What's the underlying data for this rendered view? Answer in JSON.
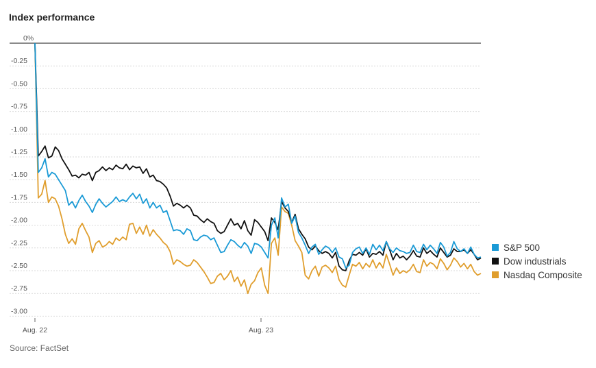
{
  "chart_data": {
    "type": "line",
    "title": "Index performance",
    "source": "Source: FactSet",
    "xlabel": "",
    "ylabel": "",
    "x_ticks": [
      "Aug. 22",
      "Aug. 23"
    ],
    "y_ticks": [
      "0%",
      "-0.25",
      "-0.50",
      "-0.75",
      "-1.00",
      "-1.25",
      "-1.50",
      "-1.75",
      "-2.00",
      "-2.25",
      "-2.50",
      "-2.75",
      "-3.00"
    ],
    "ylim": [
      -3.0,
      0
    ],
    "grid": true,
    "legend_position": "right",
    "series": [
      {
        "name": "S&P 500",
        "color": "#1a9ad6",
        "values": [
          0,
          -1.42,
          -1.37,
          -1.27,
          -1.47,
          -1.42,
          -1.44,
          -1.5,
          -1.56,
          -1.62,
          -1.78,
          -1.74,
          -1.81,
          -1.73,
          -1.67,
          -1.74,
          -1.79,
          -1.86,
          -1.77,
          -1.71,
          -1.76,
          -1.8,
          -1.77,
          -1.74,
          -1.69,
          -1.74,
          -1.72,
          -1.74,
          -1.69,
          -1.65,
          -1.71,
          -1.66,
          -1.76,
          -1.71,
          -1.81,
          -1.75,
          -1.81,
          -1.78,
          -1.86,
          -1.84,
          -1.95,
          -2.06,
          -2.05,
          -2.06,
          -2.1,
          -2.04,
          -2.06,
          -2.16,
          -2.17,
          -2.13,
          -2.11,
          -2.12,
          -2.16,
          -2.14,
          -2.22,
          -2.3,
          -2.29,
          -2.22,
          -2.16,
          -2.18,
          -2.22,
          -2.25,
          -2.19,
          -2.23,
          -2.31,
          -2.2,
          -2.21,
          -2.24,
          -2.3,
          -2.36,
          -2.0,
          -1.92,
          -2.14,
          -1.7,
          -1.8,
          -1.77,
          -1.98,
          -1.9,
          -2.08,
          -2.14,
          -2.22,
          -2.31,
          -2.24,
          -2.21,
          -2.32,
          -2.27,
          -2.23,
          -2.25,
          -2.3,
          -2.25,
          -2.35,
          -2.37,
          -2.47,
          -2.44,
          -2.3,
          -2.26,
          -2.24,
          -2.31,
          -2.25,
          -2.32,
          -2.21,
          -2.27,
          -2.22,
          -2.28,
          -2.18,
          -2.26,
          -2.3,
          -2.25,
          -2.28,
          -2.29,
          -2.31,
          -2.3,
          -2.22,
          -2.29,
          -2.3,
          -2.21,
          -2.27,
          -2.22,
          -2.26,
          -2.31,
          -2.19,
          -2.24,
          -2.34,
          -2.3,
          -2.18,
          -2.26,
          -2.29,
          -2.26,
          -2.31,
          -2.24,
          -2.32,
          -2.36,
          -2.35
        ]
      },
      {
        "name": "Dow industrials",
        "color": "#111111",
        "values": [
          0,
          -1.24,
          -1.19,
          -1.13,
          -1.26,
          -1.24,
          -1.14,
          -1.18,
          -1.27,
          -1.33,
          -1.39,
          -1.46,
          -1.45,
          -1.48,
          -1.44,
          -1.45,
          -1.42,
          -1.51,
          -1.42,
          -1.4,
          -1.36,
          -1.4,
          -1.37,
          -1.39,
          -1.34,
          -1.37,
          -1.38,
          -1.33,
          -1.39,
          -1.35,
          -1.37,
          -1.36,
          -1.43,
          -1.38,
          -1.47,
          -1.45,
          -1.51,
          -1.52,
          -1.55,
          -1.59,
          -1.68,
          -1.79,
          -1.76,
          -1.78,
          -1.81,
          -1.78,
          -1.81,
          -1.89,
          -1.9,
          -1.94,
          -1.97,
          -1.93,
          -1.96,
          -1.98,
          -2.06,
          -2.09,
          -2.07,
          -2.0,
          -1.93,
          -2.0,
          -1.98,
          -2.04,
          -1.95,
          -2.06,
          -2.11,
          -1.94,
          -1.97,
          -2.02,
          -2.07,
          -2.17,
          -1.92,
          -1.97,
          -2.05,
          -1.74,
          -1.81,
          -1.85,
          -1.97,
          -1.88,
          -2.04,
          -2.1,
          -2.15,
          -2.24,
          -2.27,
          -2.23,
          -2.28,
          -2.31,
          -2.29,
          -2.31,
          -2.36,
          -2.3,
          -2.45,
          -2.49,
          -2.5,
          -2.39,
          -2.32,
          -2.33,
          -2.3,
          -2.33,
          -2.26,
          -2.35,
          -2.31,
          -2.32,
          -2.29,
          -2.33,
          -2.18,
          -2.27,
          -2.38,
          -2.31,
          -2.36,
          -2.34,
          -2.38,
          -2.34,
          -2.28,
          -2.34,
          -2.35,
          -2.25,
          -2.31,
          -2.28,
          -2.32,
          -2.35,
          -2.25,
          -2.3,
          -2.35,
          -2.33,
          -2.26,
          -2.29,
          -2.29,
          -2.27,
          -2.31,
          -2.27,
          -2.32,
          -2.38,
          -2.36
        ]
      },
      {
        "name": "Nasdaq Composite",
        "color": "#e09e2d",
        "values": [
          0,
          -1.7,
          -1.66,
          -1.51,
          -1.75,
          -1.69,
          -1.71,
          -1.79,
          -1.93,
          -2.1,
          -2.2,
          -2.15,
          -2.21,
          -2.04,
          -1.98,
          -2.06,
          -2.13,
          -2.3,
          -2.2,
          -2.17,
          -2.24,
          -2.22,
          -2.18,
          -2.21,
          -2.14,
          -2.17,
          -2.13,
          -2.16,
          -1.99,
          -1.98,
          -2.09,
          -2.02,
          -2.1,
          -2.0,
          -2.12,
          -2.05,
          -2.1,
          -2.14,
          -2.19,
          -2.22,
          -2.29,
          -2.43,
          -2.38,
          -2.4,
          -2.43,
          -2.45,
          -2.44,
          -2.38,
          -2.41,
          -2.46,
          -2.51,
          -2.57,
          -2.64,
          -2.63,
          -2.56,
          -2.53,
          -2.6,
          -2.56,
          -2.5,
          -2.62,
          -2.57,
          -2.67,
          -2.6,
          -2.75,
          -2.65,
          -2.61,
          -2.52,
          -2.47,
          -2.66,
          -2.75,
          -2.2,
          -2.14,
          -2.33,
          -1.8,
          -1.85,
          -1.87,
          -2.0,
          -2.17,
          -2.23,
          -2.3,
          -2.55,
          -2.59,
          -2.5,
          -2.45,
          -2.56,
          -2.46,
          -2.44,
          -2.47,
          -2.52,
          -2.45,
          -2.6,
          -2.66,
          -2.68,
          -2.55,
          -2.43,
          -2.45,
          -2.41,
          -2.48,
          -2.42,
          -2.46,
          -2.38,
          -2.47,
          -2.41,
          -2.47,
          -2.32,
          -2.43,
          -2.55,
          -2.47,
          -2.53,
          -2.5,
          -2.52,
          -2.49,
          -2.43,
          -2.51,
          -2.52,
          -2.38,
          -2.45,
          -2.41,
          -2.43,
          -2.48,
          -2.37,
          -2.42,
          -2.49,
          -2.44,
          -2.36,
          -2.4,
          -2.46,
          -2.42,
          -2.48,
          -2.43,
          -2.51,
          -2.55,
          -2.53
        ]
      }
    ]
  }
}
